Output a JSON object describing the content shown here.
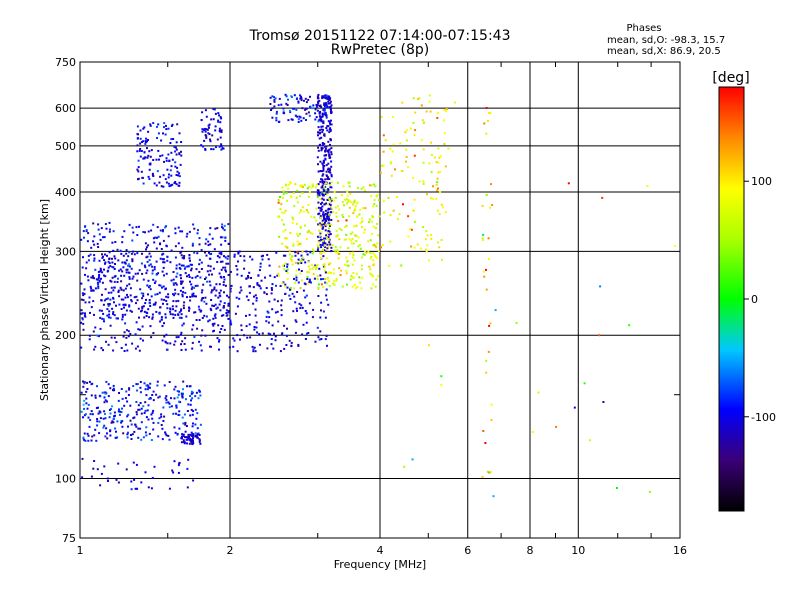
{
  "header": {
    "title_line1": "Tromsø 20151122 07:14:00-07:15:43",
    "title_line2": "RwPretec (8p)"
  },
  "stats": {
    "heading": "Phases",
    "line_o": "mean, sd,O: -98.3, 15.7",
    "line_x": "mean, sd,X:  86.9, 20.5"
  },
  "colorbar": {
    "unit_label": "[deg]",
    "ticks": [
      {
        "value": 100,
        "label": "100"
      },
      {
        "value": 0,
        "label": "0"
      },
      {
        "value": -100,
        "label": "-100"
      }
    ],
    "range": [
      -180,
      180
    ]
  },
  "chart_data": {
    "type": "scatter",
    "title": "Tromsø 20151122 07:14:00-07:15:43",
    "subtitle": "RwPretec (8p)",
    "xlabel": "Frequency [MHz]",
    "ylabel": "Stationary phase Virtual Height [km]",
    "x_scale": "log",
    "y_scale": "log",
    "xlim": [
      1,
      16
    ],
    "ylim": [
      75,
      750
    ],
    "grid": true,
    "x_ticks": [
      {
        "value": 1,
        "label": "1",
        "major": true
      },
      {
        "value": 2,
        "label": "2",
        "major": true
      },
      {
        "value": 4,
        "label": "4",
        "major": true
      },
      {
        "value": 6,
        "label": "6",
        "major": false
      },
      {
        "value": 8,
        "label": "8",
        "major": false
      },
      {
        "value": 10,
        "label": "10",
        "major": false
      },
      {
        "value": 16,
        "label": "16",
        "major": true
      }
    ],
    "x_minor_ticks": [
      1.5,
      3,
      5,
      7,
      9,
      12,
      14
    ],
    "y_ticks": [
      {
        "value": 75,
        "label": "75",
        "major": false
      },
      {
        "value": 100,
        "label": "100",
        "major": true
      },
      {
        "value": 200,
        "label": "200",
        "major": true
      },
      {
        "value": 300,
        "label": "300",
        "major": true
      },
      {
        "value": 400,
        "label": "400",
        "major": false
      },
      {
        "value": 500,
        "label": "500",
        "major": false
      },
      {
        "value": 600,
        "label": "600",
        "major": false
      },
      {
        "value": 750,
        "label": "750",
        "major": false
      }
    ],
    "y_minor_ticks": [
      150
    ],
    "series": [
      {
        "trace": "O-mode F2 main trace",
        "x_range": [
          1.0,
          3.15
        ],
        "height_range": [
          185,
          300
        ],
        "phase_mean": -105,
        "phase_sd": 12,
        "density": 650
      },
      {
        "trace": "O-mode F2 upper trace",
        "x_range": [
          1.0,
          2.0
        ],
        "height_range": [
          215,
          345
        ],
        "phase_mean": -100,
        "phase_sd": 15,
        "density": 400
      },
      {
        "trace": "O-mode cusp near foF2",
        "x_range": [
          3.0,
          3.2
        ],
        "height_range": [
          300,
          640
        ],
        "phase_mean": -110,
        "phase_sd": 8,
        "density": 320
      },
      {
        "trace": "O-mode oblique blobs 1.3-1.6 MHz",
        "x_range": [
          1.3,
          1.6
        ],
        "height_range": [
          410,
          560
        ],
        "phase_mean": -100,
        "phase_sd": 15,
        "density": 140
      },
      {
        "trace": "O-mode blobs 1.75-1.95 MHz",
        "x_range": [
          1.75,
          1.95
        ],
        "height_range": [
          490,
          600
        ],
        "phase_mean": -105,
        "phase_sd": 12,
        "density": 60
      },
      {
        "trace": "O-mode top 2.4-3.2 MHz",
        "x_range": [
          2.4,
          3.2
        ],
        "height_range": [
          560,
          640
        ],
        "phase_mean": -100,
        "phase_sd": 18,
        "density": 110
      },
      {
        "trace": "X-mode trace",
        "x_range": [
          2.5,
          4.0
        ],
        "height_range": [
          250,
          420
        ],
        "phase_mean": 80,
        "phase_sd": 25,
        "density": 420
      },
      {
        "trace": "X-mode 4-5.5 MHz",
        "x_range": [
          4.0,
          5.5
        ],
        "height_range": [
          280,
          640
        ],
        "phase_mean": 95,
        "phase_sd": 25,
        "density": 120
      },
      {
        "trace": "E-region echoes",
        "x_range": [
          1.0,
          1.75
        ],
        "height_range": [
          120,
          160
        ],
        "phase_mean": -95,
        "phase_sd": 18,
        "density": 320
      },
      {
        "trace": "E-region lower line",
        "x_range": [
          1.6,
          1.75
        ],
        "height_range": [
          118,
          124
        ],
        "phase_mean": -110,
        "phase_sd": 8,
        "density": 50
      },
      {
        "trace": "Low echoes near 100 km",
        "x_range": [
          1.0,
          1.7
        ],
        "height_range": [
          94,
          110
        ],
        "phase_mean": -110,
        "phase_sd": 12,
        "density": 40
      },
      {
        "trace": "Interference column 6.5 MHz",
        "x_range": [
          6.4,
          6.7
        ],
        "height_range": [
          100,
          620
        ],
        "phase_mean": 110,
        "phase_sd": 60,
        "density": 30
      },
      {
        "trace": "Scattered noise",
        "x_range": [
          4.0,
          16.0
        ],
        "height_range": [
          90,
          620
        ],
        "phase_mean": 60,
        "phase_sd": 90,
        "density": 35
      }
    ]
  }
}
